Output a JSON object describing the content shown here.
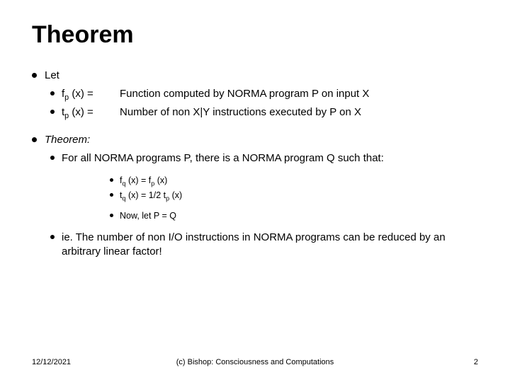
{
  "title": "Theorem",
  "let_label": "Let",
  "def1_lhs": "f__p (x)  =",
  "def1_rhs": "Function computed by NORMA program P on input X",
  "def2_lhs": "t__p (x)  =",
  "def2_rhs": "Number of non X|Y instructions executed by P on X",
  "theorem_label": "Theorem:",
  "forall": "For all NORMA programs P, there is a NORMA program Q such that:",
  "eq1": "f__q (x)  =  f__p (x)",
  "eq2": "t__q (x)  =  1/2 t__p (x)",
  "now": "Now, let P = Q",
  "conclusion": "ie. The number of non I/O instructions in NORMA programs can be reduced by an arbitrary linear factor!",
  "footer_date": "12/12/2021",
  "footer_center": "(c) Bishop: Consciousness and Computations",
  "footer_page": "2",
  "colors": {
    "text": "#000000",
    "bg": "#ffffff"
  },
  "fontsizes": {
    "title": 34,
    "l1": 15,
    "l2": 15,
    "l3": 13.5,
    "l4": 12.5,
    "footer": 11
  }
}
